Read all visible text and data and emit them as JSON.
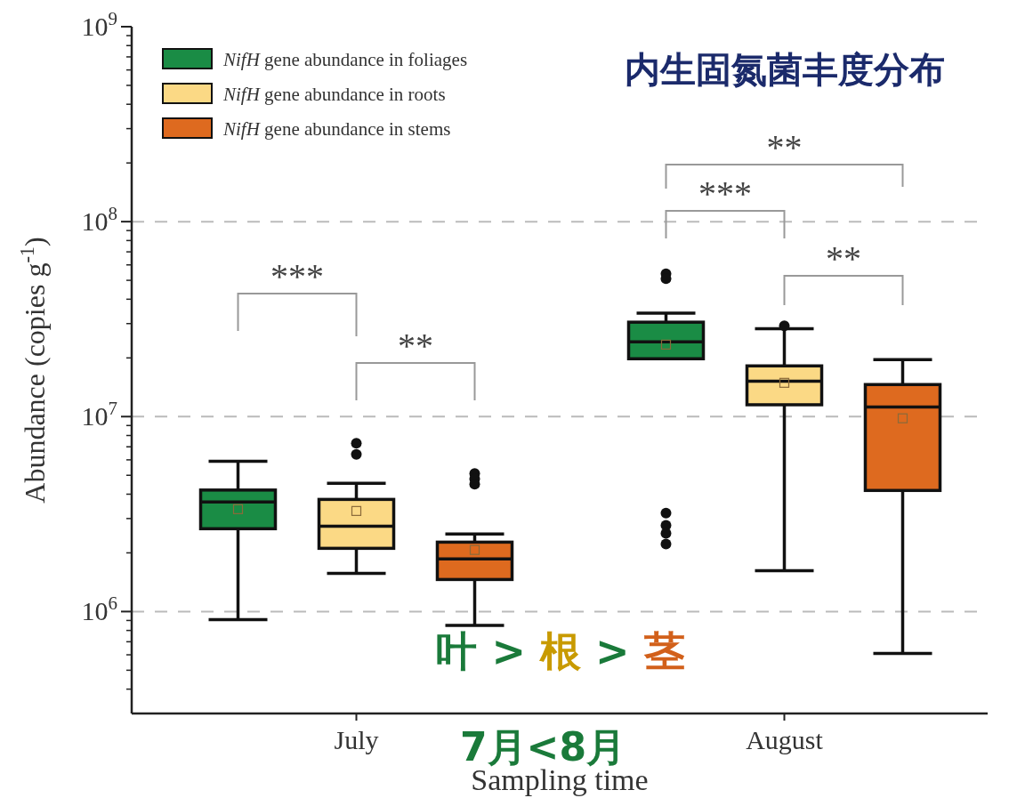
{
  "chart_data": {
    "type": "box",
    "title": "内生固氮菌丰度分布",
    "xlabel": "Sampling time",
    "ylabel": "Abundance (copies g$^{-1}$)",
    "categories": [
      "July",
      "August"
    ],
    "series": [
      {
        "name": "*NifH* gene abundance in foliages",
        "color": "#1a8c45",
        "boxes": [
          {
            "low": 910000,
            "q1": 2660000,
            "median": 3650000,
            "q3": 4200000,
            "high": 5900000,
            "mean": 3350000
          },
          {
            "low": 19800000,
            "q1": 19800000,
            "median": 24200000,
            "q3": 30500000,
            "high": 33900000,
            "mean": 23400000,
            "outliers": [
              54000000,
              51000000,
              3200000,
              2770000,
              2520000,
              2220000
            ]
          }
        ]
      },
      {
        "name": "*NifH* gene abundance in roots",
        "color": "#fbd985",
        "boxes": [
          {
            "low": 1570000,
            "q1": 2110000,
            "median": 2740000,
            "q3": 3760000,
            "high": 4550000,
            "mean": 3280000,
            "outliers": [
              7300000,
              6400000
            ]
          },
          {
            "low": 1620000,
            "q1": 11500000,
            "median": 15200000,
            "q3": 18200000,
            "high": 28200000,
            "mean": 14900000,
            "outliers": [
              29200000
            ]
          }
        ]
      },
      {
        "name": "*NifH* gene abundance in stems",
        "color": "#de6a1f",
        "boxes": [
          {
            "low": 850000,
            "q1": 1460000,
            "median": 1860000,
            "q3": 2270000,
            "high": 2500000,
            "mean": 2070000,
            "outliers": [
              5100000,
              4800000,
              4500000
            ]
          },
          {
            "low": 610000,
            "q1": 4180000,
            "median": 11200000,
            "q3": 14600000,
            "high": 19600000,
            "mean": 9800000
          }
        ]
      }
    ],
    "log": true,
    "ylim": [
      300000,
      1000000000
    ],
    "yticks": [
      {
        "value": 1000000,
        "label": "10$^{6}$"
      },
      {
        "value": 10000000,
        "label": "10$^{7}$"
      },
      {
        "value": 100000000,
        "label": "10$^{8}$"
      },
      {
        "value": 1000000000,
        "label": "10$^{9}$"
      }
    ],
    "grid": "y",
    "legend": "top left",
    "marker": "square",
    "annotations": [
      "***",
      "**",
      "**",
      "***",
      "**",
      "叶 > 根 > 茎",
      "7月<8月"
    ]
  }
}
